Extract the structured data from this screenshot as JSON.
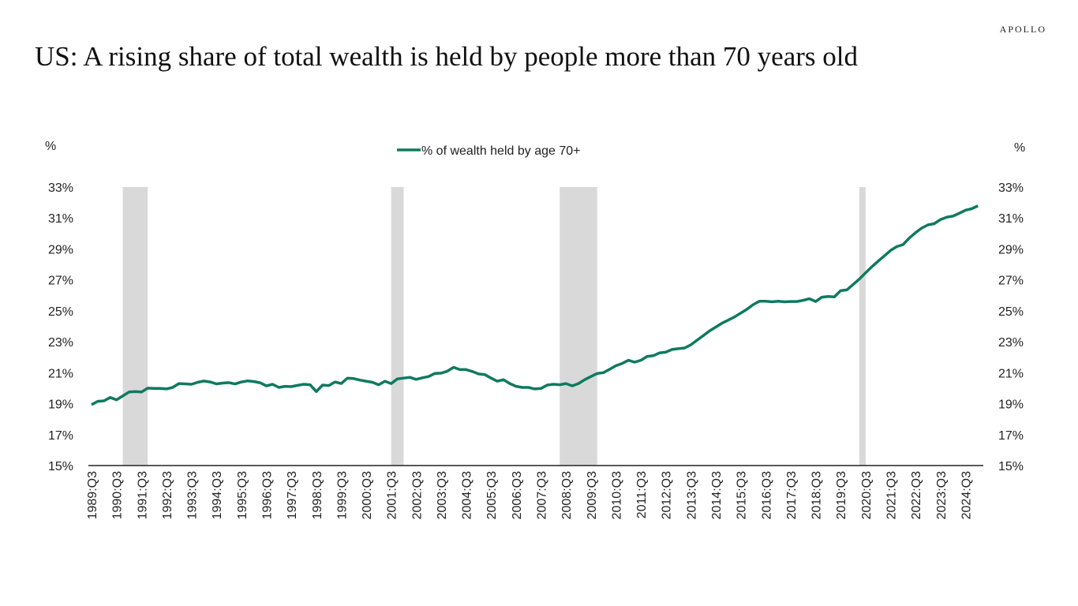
{
  "brand": "APOLLO",
  "title": "US: A rising share of  total wealth is held by people more than 70 years old",
  "chart_data": {
    "type": "line",
    "title": "US: A rising share of  total wealth is held by people more than 70 years old",
    "ylabel_left": "%",
    "ylabel_right": "%",
    "ylim": [
      15,
      33
    ],
    "y_ticks": [
      "15%",
      "17%",
      "19%",
      "21%",
      "23%",
      "25%",
      "27%",
      "29%",
      "31%",
      "33%"
    ],
    "y_tick_values": [
      15,
      17,
      19,
      21,
      23,
      25,
      27,
      29,
      31,
      33
    ],
    "x_tick_labels": [
      "1989:Q3",
      "1990:Q3",
      "1991:Q3",
      "1992:Q3",
      "1993:Q3",
      "1994:Q3",
      "1995:Q3",
      "1996:Q3",
      "1997:Q3",
      "1998:Q3",
      "1999:Q3",
      "2000:Q3",
      "2001:Q3",
      "2002:Q3",
      "2003:Q3",
      "2004:Q3",
      "2005:Q3",
      "2006:Q3",
      "2007:Q3",
      "2008:Q3",
      "2009:Q3",
      "2010:Q3",
      "2011:Q3",
      "2012:Q3",
      "2013:Q3",
      "2014:Q3",
      "2015:Q3",
      "2016:Q3",
      "2017:Q3",
      "2018:Q3",
      "2019:Q3",
      "2020:Q3",
      "2021:Q3",
      "2022:Q3",
      "2023:Q3",
      "2024:Q3"
    ],
    "x": [
      "1989:Q3",
      "1989:Q4",
      "1990:Q1",
      "1990:Q2",
      "1990:Q3",
      "1990:Q4",
      "1991:Q1",
      "1991:Q2",
      "1991:Q3",
      "1991:Q4",
      "1992:Q1",
      "1992:Q2",
      "1992:Q3",
      "1992:Q4",
      "1993:Q1",
      "1993:Q2",
      "1993:Q3",
      "1993:Q4",
      "1994:Q1",
      "1994:Q2",
      "1994:Q3",
      "1994:Q4",
      "1995:Q1",
      "1995:Q2",
      "1995:Q3",
      "1995:Q4",
      "1996:Q1",
      "1996:Q2",
      "1996:Q3",
      "1996:Q4",
      "1997:Q1",
      "1997:Q2",
      "1997:Q3",
      "1997:Q4",
      "1998:Q1",
      "1998:Q2",
      "1998:Q3",
      "1998:Q4",
      "1999:Q1",
      "1999:Q2",
      "1999:Q3",
      "1999:Q4",
      "2000:Q1",
      "2000:Q2",
      "2000:Q3",
      "2000:Q4",
      "2001:Q1",
      "2001:Q2",
      "2001:Q3",
      "2001:Q4",
      "2002:Q1",
      "2002:Q2",
      "2002:Q3",
      "2002:Q4",
      "2003:Q1",
      "2003:Q2",
      "2003:Q3",
      "2003:Q4",
      "2004:Q1",
      "2004:Q2",
      "2004:Q3",
      "2004:Q4",
      "2005:Q1",
      "2005:Q2",
      "2005:Q3",
      "2005:Q4",
      "2006:Q1",
      "2006:Q2",
      "2006:Q3",
      "2006:Q4",
      "2007:Q1",
      "2007:Q2",
      "2007:Q3",
      "2007:Q4",
      "2008:Q1",
      "2008:Q2",
      "2008:Q3",
      "2008:Q4",
      "2009:Q1",
      "2009:Q2",
      "2009:Q3",
      "2009:Q4",
      "2010:Q1",
      "2010:Q2",
      "2010:Q3",
      "2010:Q4",
      "2011:Q1",
      "2011:Q2",
      "2011:Q3",
      "2011:Q4",
      "2012:Q1",
      "2012:Q2",
      "2012:Q3",
      "2012:Q4",
      "2013:Q1",
      "2013:Q2",
      "2013:Q3",
      "2013:Q4",
      "2014:Q1",
      "2014:Q2",
      "2014:Q3",
      "2014:Q4",
      "2015:Q1",
      "2015:Q2",
      "2015:Q3",
      "2015:Q4",
      "2016:Q1",
      "2016:Q2",
      "2016:Q3",
      "2016:Q4",
      "2017:Q1",
      "2017:Q2",
      "2017:Q3",
      "2017:Q4",
      "2018:Q1",
      "2018:Q2",
      "2018:Q3",
      "2018:Q4",
      "2019:Q1",
      "2019:Q2",
      "2019:Q3",
      "2019:Q4",
      "2020:Q1",
      "2020:Q2",
      "2020:Q3",
      "2020:Q4",
      "2021:Q1",
      "2021:Q2",
      "2021:Q3",
      "2021:Q4",
      "2022:Q1",
      "2022:Q2",
      "2022:Q3",
      "2022:Q4",
      "2023:Q1",
      "2023:Q2",
      "2023:Q3",
      "2023:Q4",
      "2024:Q1",
      "2024:Q2",
      "2024:Q3",
      "2024:Q4",
      "2025:Q1"
    ],
    "series": [
      {
        "name": "% of wealth held by age 70+",
        "color": "#0e7a5f",
        "values": [
          18.93,
          19.15,
          19.18,
          19.4,
          19.25,
          19.5,
          19.75,
          19.78,
          19.75,
          20.0,
          19.98,
          19.98,
          19.95,
          20.05,
          20.3,
          20.28,
          20.25,
          20.38,
          20.46,
          20.4,
          20.28,
          20.33,
          20.36,
          20.27,
          20.4,
          20.47,
          20.43,
          20.35,
          20.15,
          20.25,
          20.05,
          20.12,
          20.1,
          20.18,
          20.25,
          20.22,
          19.78,
          20.2,
          20.17,
          20.4,
          20.3,
          20.65,
          20.62,
          20.52,
          20.45,
          20.38,
          20.22,
          20.45,
          20.3,
          20.6,
          20.65,
          20.7,
          20.57,
          20.67,
          20.75,
          20.95,
          20.97,
          21.1,
          21.35,
          21.2,
          21.2,
          21.08,
          20.92,
          20.88,
          20.65,
          20.45,
          20.55,
          20.3,
          20.12,
          20.05,
          20.05,
          19.95,
          19.98,
          20.2,
          20.25,
          20.22,
          20.3,
          20.15,
          20.3,
          20.55,
          20.75,
          20.95,
          21.0,
          21.22,
          21.45,
          21.6,
          21.8,
          21.68,
          21.8,
          22.05,
          22.1,
          22.28,
          22.33,
          22.5,
          22.55,
          22.6,
          22.8,
          23.1,
          23.4,
          23.7,
          23.95,
          24.2,
          24.4,
          24.6,
          24.85,
          25.1,
          25.4,
          25.62,
          25.62,
          25.58,
          25.62,
          25.58,
          25.6,
          25.6,
          25.68,
          25.78,
          25.6,
          25.88,
          25.92,
          25.9,
          26.3,
          26.35,
          26.7,
          27.05,
          27.45,
          27.85,
          28.2,
          28.55,
          28.9,
          29.15,
          29.28,
          29.7,
          30.05,
          30.35,
          30.55,
          30.63,
          30.9,
          31.05,
          31.12,
          31.3,
          31.5,
          31.6,
          31.78
        ]
      }
    ],
    "recession_shading": [
      {
        "start": "1990:Q4",
        "end": "1991:Q3"
      },
      {
        "start": "2001:Q3",
        "end": "2001:Q4"
      },
      {
        "start": "2008:Q2",
        "end": "2009:Q3"
      },
      {
        "start": "2020:Q2",
        "end": "2020:Q2"
      }
    ],
    "shading_color": "#d9d9d9",
    "legend_position": "top-center",
    "grid": false
  }
}
